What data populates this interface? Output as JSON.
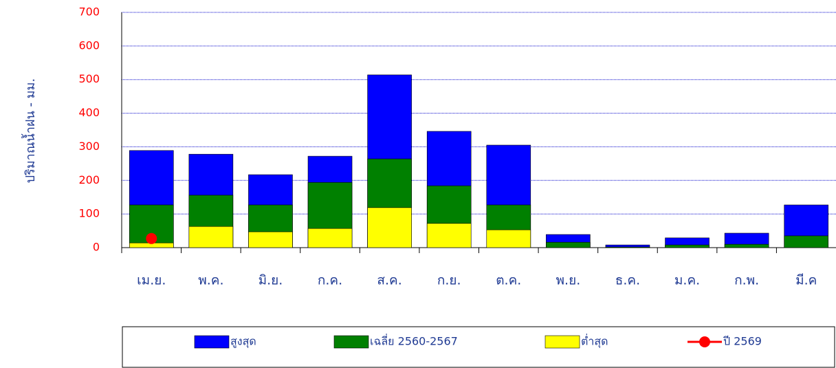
{
  "chart_data": {
    "type": "bar",
    "y_label": "ปริมาณน้ำฝน - มม.",
    "categories": [
      "เม.ย.",
      "พ.ค.",
      "มิ.ย.",
      "ก.ค.",
      "ส.ค.",
      "ก.ย.",
      "ต.ค.",
      "พ.ย.",
      "ธ.ค.",
      "ม.ค.",
      "ก.พ.",
      "มี.ค"
    ],
    "series": [
      {
        "name": "สูงสุด",
        "type": "bar",
        "color": "#0000ff",
        "values": [
          289,
          278,
          217,
          272,
          514,
          346,
          305,
          39,
          8,
          29,
          43,
          127
        ]
      },
      {
        "name": "เฉลี่ย 2560-2567",
        "type": "bar",
        "color": "#008000",
        "values": [
          127,
          156,
          127,
          194,
          264,
          184,
          127,
          16,
          2,
          8,
          10,
          35
        ]
      },
      {
        "name": "ต่ำสุด",
        "type": "bar",
        "color": "#ffff00",
        "values": [
          14,
          63,
          47,
          57,
          119,
          72,
          53,
          0,
          0,
          0,
          0,
          0
        ]
      },
      {
        "name": "ปี 2569",
        "type": "line",
        "color": "#ff0000",
        "values": [
          27,
          null,
          null,
          null,
          null,
          null,
          null,
          null,
          null,
          null,
          null,
          null
        ]
      }
    ],
    "ylim": [
      0,
      700
    ],
    "yticks": [
      0,
      100,
      200,
      300,
      400,
      500,
      600,
      700
    ],
    "grid": true,
    "legend": "bottom"
  }
}
